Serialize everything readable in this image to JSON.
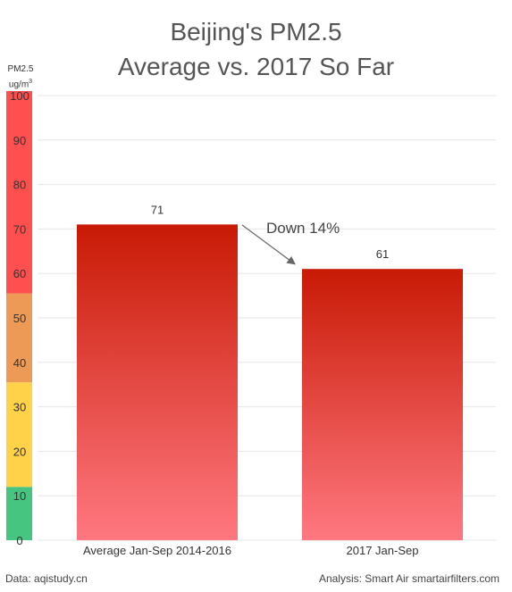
{
  "title_lines": [
    "Beijing's PM2.5",
    "Average vs. 2017 So Far"
  ],
  "ylabel_lines": [
    "PM2.5",
    "ug/m",
    "3"
  ],
  "annotation": "Down 14%",
  "footer": {
    "source": "Data: aqistudy.cn",
    "credit": "Analysis: Smart Air smartairfilters.com"
  },
  "colors": {
    "bar_top": "#c81a05",
    "bar_bottom": "#ff7880",
    "band_good": "#45c57f",
    "band_moderate": "#ffd24a",
    "band_usg": "#ec9a55",
    "band_unhealthy": "#ff4f4f",
    "grid": "#e6e6e6"
  },
  "chart_data": {
    "type": "bar",
    "title": "Beijing's PM2.5 Average vs. 2017 So Far",
    "ylabel": "PM2.5 ug/m3",
    "categories": [
      "Average Jan-Sep 2014-2016",
      "2017 Jan-Sep"
    ],
    "values": [
      71,
      61
    ],
    "ylim": [
      0,
      101
    ],
    "yticks": [
      0,
      10,
      20,
      30,
      40,
      50,
      60,
      70,
      80,
      90,
      100
    ],
    "grid": true,
    "color_bands": [
      {
        "from": 0,
        "to": 12,
        "color": "band_good"
      },
      {
        "from": 12,
        "to": 35.5,
        "color": "band_moderate"
      },
      {
        "from": 35.5,
        "to": 55.5,
        "color": "band_usg"
      },
      {
        "from": 55.5,
        "to": 101,
        "color": "band_unhealthy"
      }
    ]
  }
}
